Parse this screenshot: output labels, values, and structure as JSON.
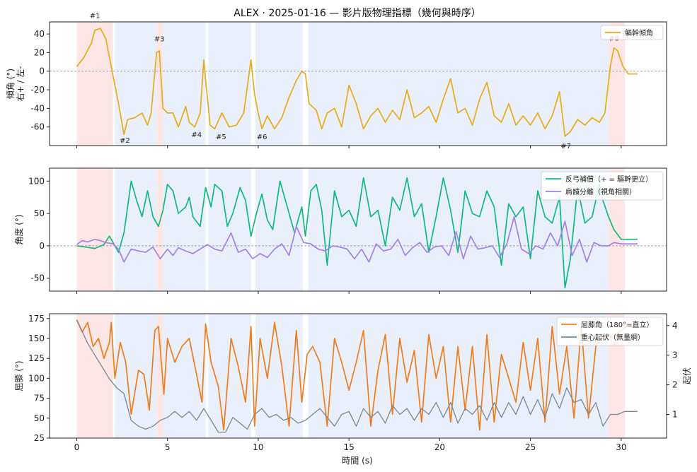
{
  "figure": {
    "title": "ALEX · 2025-01-16 — 影片版物理指標（幾何與時序）",
    "xlabel": "時間 (s)"
  },
  "colors": {
    "seg_red": "#fde2e2",
    "seg_blue": "#e8eefb",
    "tilt": "#e9ab17",
    "counter": "#10b981",
    "shoulder_hip": "#a57ff0",
    "knee": "#f07c1b",
    "com": "#778899",
    "zero_line": "#888888"
  },
  "chart_data": [
    {
      "type": "line",
      "ylabel": "傾角 (°)",
      "ylabel_sub": "右+ / 左-",
      "xlim": [
        -1.5,
        32.5
      ],
      "ylim": [
        -80,
        53
      ],
      "yticks": [
        -60,
        -40,
        -20,
        0,
        20,
        40
      ],
      "xticks": [
        0,
        5,
        10,
        15,
        20,
        25,
        30
      ],
      "segments": [
        {
          "x0": 0,
          "x1": 2.0,
          "kind": "red"
        },
        {
          "x0": 2.1,
          "x1": 4.4,
          "kind": "blue"
        },
        {
          "x0": 4.4,
          "x1": 4.75,
          "kind": "red"
        },
        {
          "x0": 4.75,
          "x1": 7.1,
          "kind": "blue"
        },
        {
          "x0": 7.25,
          "x1": 9.6,
          "kind": "blue"
        },
        {
          "x0": 9.85,
          "x1": 12.45,
          "kind": "blue"
        },
        {
          "x0": 12.75,
          "x1": 29.3,
          "kind": "blue"
        },
        {
          "x0": 29.3,
          "x1": 30.2,
          "kind": "red"
        }
      ],
      "annotations": [
        {
          "label": "#1",
          "x": 1.0,
          "y": 57
        },
        {
          "label": "#2",
          "x": 2.65,
          "y": -77
        },
        {
          "label": "#3",
          "x": 4.55,
          "y": 32
        },
        {
          "label": "#4",
          "x": 6.6,
          "y": -71
        },
        {
          "label": "#5",
          "x": 7.95,
          "y": -73
        },
        {
          "label": "#6",
          "x": 10.2,
          "y": -73
        },
        {
          "label": "#7",
          "x": 26.95,
          "y": -83
        },
        {
          "label": "#8",
          "x": 29.6,
          "y": 33
        }
      ],
      "series": [
        {
          "name": "軀幹傾角",
          "color_key": "tilt",
          "x": [
            0,
            0.4,
            0.8,
            1.0,
            1.3,
            1.6,
            1.9,
            2.3,
            2.6,
            2.8,
            3.2,
            3.6,
            3.9,
            4.1,
            4.4,
            4.55,
            4.75,
            5.0,
            5.3,
            5.6,
            6.0,
            6.2,
            6.5,
            6.8,
            7.0,
            7.1,
            7.35,
            7.6,
            8.0,
            8.4,
            8.8,
            9.2,
            9.6,
            9.8,
            10.0,
            10.2,
            10.5,
            10.9,
            11.3,
            11.7,
            12.1,
            12.4,
            12.6,
            12.8,
            13.2,
            13.5,
            13.8,
            14.2,
            14.6,
            15.0,
            15.4,
            15.8,
            16.2,
            16.6,
            17.0,
            17.4,
            17.8,
            18.2,
            18.6,
            19.0,
            19.4,
            19.8,
            20.2,
            20.6,
            21.0,
            21.4,
            21.8,
            22.2,
            22.6,
            23.0,
            23.4,
            23.8,
            24.2,
            24.6,
            25.0,
            25.4,
            25.8,
            26.2,
            26.6,
            26.9,
            27.2,
            27.6,
            28.0,
            28.4,
            28.8,
            29.1,
            29.4,
            29.6,
            29.8,
            30.1,
            30.4,
            30.9
          ],
          "y": [
            5,
            15,
            30,
            44,
            46,
            35,
            5,
            -35,
            -68,
            -52,
            -50,
            -45,
            -58,
            -45,
            20,
            22,
            -40,
            -45,
            -45,
            -60,
            -38,
            -55,
            -60,
            -45,
            12,
            -10,
            -58,
            -62,
            -45,
            -60,
            -58,
            -45,
            12,
            -25,
            -45,
            -62,
            -48,
            -62,
            -50,
            -28,
            -10,
            0,
            -3,
            -35,
            -42,
            -62,
            -45,
            -40,
            -60,
            -15,
            -35,
            -62,
            -48,
            -40,
            -55,
            -42,
            -52,
            -20,
            -50,
            -45,
            -38,
            -55,
            -30,
            -8,
            -45,
            -40,
            -58,
            -30,
            -12,
            -48,
            -55,
            -35,
            -58,
            -48,
            -58,
            -45,
            -62,
            -48,
            -22,
            -70,
            -65,
            -52,
            -58,
            -50,
            -55,
            -45,
            5,
            25,
            22,
            5,
            -3,
            -3
          ]
        }
      ]
    },
    {
      "type": "line",
      "ylabel": "角度 (°)",
      "xlim": [
        -1.5,
        32.5
      ],
      "ylim": [
        -70,
        120
      ],
      "yticks": [
        -50,
        0,
        50,
        100
      ],
      "xticks": [
        0,
        5,
        10,
        15,
        20,
        25,
        30
      ],
      "segments": [
        {
          "x0": 0,
          "x1": 2.0,
          "kind": "red"
        },
        {
          "x0": 2.1,
          "x1": 4.4,
          "kind": "blue"
        },
        {
          "x0": 4.4,
          "x1": 4.75,
          "kind": "red"
        },
        {
          "x0": 4.75,
          "x1": 7.1,
          "kind": "blue"
        },
        {
          "x0": 7.25,
          "x1": 9.6,
          "kind": "blue"
        },
        {
          "x0": 9.85,
          "x1": 12.45,
          "kind": "blue"
        },
        {
          "x0": 12.75,
          "x1": 29.3,
          "kind": "blue"
        },
        {
          "x0": 29.3,
          "x1": 30.2,
          "kind": "red"
        }
      ],
      "series": [
        {
          "name": "反弓補償（+ = 驅幹更立）",
          "color_key": "counter",
          "x": [
            0,
            0.5,
            1.0,
            1.5,
            1.8,
            2.0,
            2.3,
            2.6,
            3.0,
            3.3,
            3.6,
            3.9,
            4.2,
            4.5,
            4.75,
            5.0,
            5.3,
            5.6,
            6.0,
            6.2,
            6.4,
            6.8,
            7.1,
            7.4,
            7.6,
            8.0,
            8.3,
            8.6,
            9.0,
            9.3,
            9.6,
            9.9,
            10.2,
            10.5,
            10.8,
            11.2,
            11.6,
            12.0,
            12.4,
            12.6,
            12.9,
            13.2,
            13.5,
            13.8,
            14.2,
            14.6,
            15.0,
            15.4,
            15.8,
            16.2,
            16.6,
            17.0,
            17.4,
            17.8,
            18.2,
            18.6,
            19.0,
            19.4,
            19.8,
            20.2,
            20.6,
            21.0,
            21.4,
            21.8,
            22.2,
            22.6,
            23.0,
            23.4,
            23.8,
            24.2,
            24.6,
            25.0,
            25.4,
            25.8,
            26.2,
            26.6,
            26.9,
            27.2,
            27.6,
            28.0,
            28.4,
            28.8,
            29.0,
            29.3,
            29.6,
            30.0,
            30.4,
            30.9
          ],
          "y": [
            0,
            -2,
            -4,
            2,
            15,
            5,
            -10,
            20,
            100,
            70,
            45,
            85,
            45,
            30,
            55,
            95,
            85,
            50,
            60,
            75,
            45,
            30,
            90,
            60,
            95,
            85,
            30,
            50,
            90,
            70,
            15,
            50,
            80,
            40,
            25,
            100,
            60,
            20,
            60,
            15,
            85,
            95,
            55,
            -30,
            85,
            45,
            55,
            30,
            105,
            45,
            55,
            0,
            75,
            55,
            105,
            45,
            65,
            -10,
            45,
            105,
            55,
            -10,
            85,
            50,
            45,
            85,
            60,
            -30,
            65,
            45,
            60,
            -20,
            85,
            45,
            35,
            75,
            -65,
            -20,
            90,
            35,
            45,
            95,
            70,
            45,
            25,
            10,
            10,
            10
          ]
        },
        {
          "name": "肩髖分離（視角相關）",
          "color_key": "shoulder_hip",
          "x": [
            0,
            0.3,
            0.6,
            1.0,
            1.3,
            1.6,
            2.0,
            2.3,
            2.6,
            3.0,
            3.4,
            3.8,
            4.2,
            4.6,
            5.0,
            5.3,
            5.6,
            6.0,
            6.4,
            6.8,
            7.2,
            7.6,
            8.0,
            8.5,
            8.9,
            9.3,
            9.7,
            10.1,
            10.5,
            10.9,
            11.3,
            11.7,
            12.1,
            12.5,
            12.9,
            13.3,
            13.7,
            14.1,
            14.5,
            14.9,
            15.3,
            15.7,
            16.1,
            16.5,
            16.9,
            17.3,
            17.7,
            18.1,
            18.5,
            18.9,
            19.3,
            19.7,
            20.1,
            20.5,
            20.9,
            21.3,
            21.7,
            22.1,
            22.5,
            22.9,
            23.3,
            23.7,
            24.1,
            24.5,
            24.9,
            25.3,
            25.7,
            26.1,
            26.5,
            26.9,
            27.3,
            27.7,
            28.1,
            28.5,
            28.9,
            29.3,
            29.6,
            30.0,
            30.5,
            30.9
          ],
          "y": [
            2,
            8,
            6,
            10,
            8,
            5,
            3,
            -5,
            -25,
            -5,
            -8,
            -10,
            -2,
            -20,
            -5,
            -15,
            -3,
            -8,
            -12,
            -5,
            2,
            -5,
            -8,
            20,
            -10,
            -5,
            -20,
            -12,
            -18,
            -5,
            3,
            -15,
            30,
            5,
            3,
            -5,
            -8,
            0,
            -2,
            -5,
            -20,
            -5,
            -25,
            3,
            -8,
            -5,
            10,
            -15,
            -3,
            5,
            -10,
            -2,
            0,
            -15,
            22,
            -20,
            15,
            -5,
            -3,
            0,
            -18,
            3,
            45,
            -5,
            -12,
            0,
            -5,
            20,
            0,
            38,
            -15,
            10,
            -25,
            5,
            0,
            0,
            5,
            3,
            3,
            3
          ]
        }
      ]
    },
    {
      "type": "line",
      "ylabel": "屈膝 (°)",
      "ylabel_right": "起伏",
      "xlim": [
        -1.5,
        32.5
      ],
      "ylim": [
        25,
        181
      ],
      "yticks": [
        25,
        50,
        75,
        100,
        125,
        150,
        175
      ],
      "ylim_right": [
        0.2,
        4.4
      ],
      "yticks_right": [
        1,
        2,
        3,
        4
      ],
      "xticks": [
        0,
        5,
        10,
        15,
        20,
        25,
        30
      ],
      "segments": [
        {
          "x0": 0,
          "x1": 2.0,
          "kind": "red"
        },
        {
          "x0": 2.1,
          "x1": 4.4,
          "kind": "blue"
        },
        {
          "x0": 4.4,
          "x1": 4.75,
          "kind": "red"
        },
        {
          "x0": 4.75,
          "x1": 7.1,
          "kind": "blue"
        },
        {
          "x0": 7.25,
          "x1": 9.6,
          "kind": "blue"
        },
        {
          "x0": 9.85,
          "x1": 12.45,
          "kind": "blue"
        },
        {
          "x0": 12.75,
          "x1": 29.3,
          "kind": "blue"
        },
        {
          "x0": 29.3,
          "x1": 30.2,
          "kind": "red"
        }
      ],
      "series": [
        {
          "name": "屈膝角（180°=直立）",
          "color_key": "knee",
          "axis": "left",
          "x": [
            0,
            0.3,
            0.6,
            0.9,
            1.2,
            1.5,
            1.8,
            1.9,
            2.1,
            2.4,
            2.7,
            3.0,
            3.4,
            3.7,
            4.0,
            4.3,
            4.5,
            4.8,
            5.0,
            5.4,
            5.8,
            6.2,
            6.6,
            6.9,
            7.1,
            7.4,
            7.8,
            8.1,
            8.5,
            8.9,
            9.3,
            9.6,
            9.8,
            10.1,
            10.5,
            10.9,
            11.3,
            11.7,
            12.1,
            12.4,
            12.7,
            13.0,
            13.4,
            13.8,
            14.2,
            14.6,
            15.0,
            15.4,
            15.8,
            16.2,
            16.6,
            17.0,
            17.4,
            17.8,
            18.2,
            18.6,
            19.0,
            19.4,
            19.8,
            20.2,
            20.6,
            21.0,
            21.4,
            21.8,
            22.2,
            22.6,
            23.0,
            23.4,
            23.8,
            24.2,
            24.6,
            25.0,
            25.4,
            25.8,
            26.2,
            26.6,
            27.0,
            27.4,
            27.8,
            28.2,
            28.6,
            29.0,
            29.4,
            29.7,
            30.0,
            30.3,
            30.9
          ],
          "y": [
            173,
            158,
            170,
            140,
            150,
            125,
            145,
            170,
            100,
            145,
            120,
            55,
            110,
            105,
            60,
            160,
            165,
            80,
            150,
            120,
            140,
            150,
            105,
            70,
            168,
            120,
            90,
            35,
            150,
            115,
            70,
            165,
            40,
            150,
            100,
            170,
            115,
            40,
            160,
            70,
            130,
            140,
            120,
            40,
            150,
            120,
            85,
            120,
            160,
            40,
            110,
            155,
            55,
            150,
            95,
            135,
            45,
            155,
            100,
            140,
            45,
            140,
            60,
            140,
            35,
            155,
            45,
            130,
            100,
            70,
            145,
            85,
            150,
            45,
            165,
            80,
            140,
            50,
            165,
            50,
            140,
            155,
            150,
            155,
            160,
            165,
            165
          ]
        },
        {
          "name": "重心起伏（無量綱）",
          "color_key": "com",
          "axis": "right",
          "x": [
            0,
            0.3,
            0.6,
            1.0,
            1.4,
            1.8,
            2.2,
            2.6,
            3.0,
            3.4,
            3.8,
            4.2,
            4.6,
            5.0,
            5.4,
            5.8,
            6.2,
            6.6,
            7.0,
            7.4,
            7.8,
            8.2,
            8.6,
            9.0,
            9.4,
            9.8,
            10.2,
            10.6,
            11.0,
            11.4,
            11.8,
            12.2,
            12.6,
            13.0,
            13.4,
            13.8,
            14.2,
            14.6,
            15.0,
            15.4,
            15.8,
            16.2,
            16.6,
            17.0,
            17.4,
            17.8,
            18.2,
            18.6,
            19.0,
            19.4,
            19.8,
            20.2,
            20.6,
            21.0,
            21.4,
            21.8,
            22.2,
            22.6,
            23.0,
            23.4,
            23.8,
            24.2,
            24.6,
            25.0,
            25.4,
            25.8,
            26.2,
            26.6,
            27.0,
            27.4,
            27.8,
            28.2,
            28.6,
            29.0,
            29.4,
            29.8,
            30.2,
            30.6,
            30.9
          ],
          "y": [
            4.2,
            3.8,
            3.4,
            3.0,
            2.6,
            2.2,
            1.9,
            1.7,
            0.8,
            0.6,
            0.5,
            0.6,
            0.8,
            0.9,
            1.1,
            0.9,
            1.1,
            0.8,
            1.2,
            0.8,
            0.4,
            0.4,
            0.9,
            0.7,
            0.5,
            1.0,
            1.2,
            0.9,
            1.0,
            0.8,
            0.9,
            0.7,
            0.8,
            1.0,
            1.2,
            0.9,
            0.6,
            1.0,
            1.1,
            0.6,
            1.2,
            0.9,
            1.1,
            0.7,
            1.3,
            1.0,
            1.2,
            0.8,
            1.2,
            1.0,
            1.4,
            0.9,
            1.4,
            0.7,
            1.2,
            1.0,
            1.3,
            0.8,
            1.4,
            0.9,
            1.4,
            1.0,
            1.6,
            1.0,
            1.5,
            0.9,
            1.7,
            1.2,
            1.9,
            1.4,
            1.5,
            1.0,
            1.4,
            0.6,
            1.0,
            1.0,
            1.1,
            1.1,
            1.1
          ]
        }
      ]
    }
  ]
}
